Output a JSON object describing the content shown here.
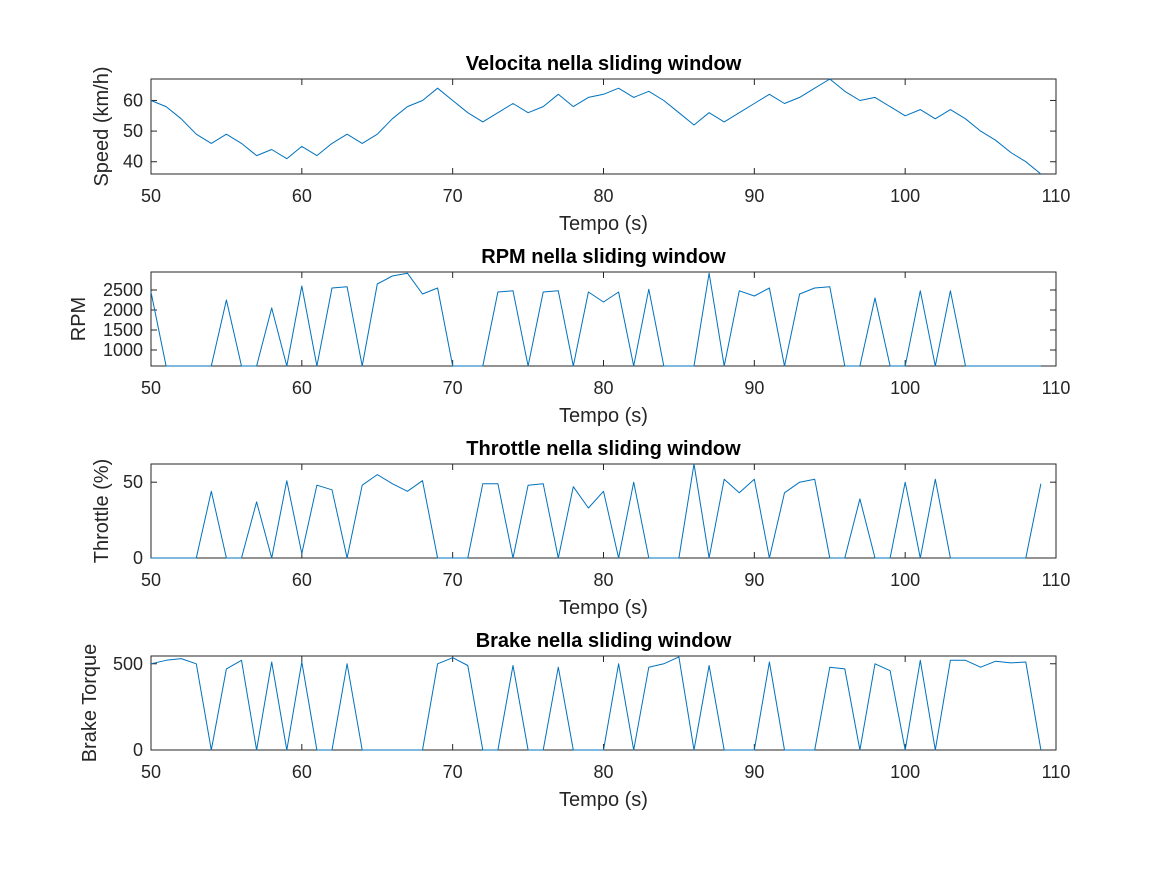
{
  "chart_data": [
    {
      "type": "line",
      "title": "Velocita nella sliding window",
      "xlabel": "Tempo (s)",
      "ylabel": "Speed (km/h)",
      "xlim": [
        50,
        110
      ],
      "ylim": [
        36,
        67
      ],
      "xticks": [
        50,
        60,
        70,
        80,
        90,
        100,
        110
      ],
      "yticks": [
        40,
        50,
        60
      ],
      "grid": false,
      "color": "#0072BD",
      "x": [
        50,
        51,
        52,
        53,
        54,
        55,
        56,
        57,
        58,
        59,
        60,
        61,
        62,
        63,
        64,
        65,
        66,
        67,
        68,
        69,
        70,
        71,
        72,
        73,
        74,
        75,
        76,
        77,
        78,
        79,
        80,
        81,
        82,
        83,
        84,
        85,
        86,
        87,
        88,
        89,
        90,
        91,
        92,
        93,
        94,
        95,
        96,
        97,
        98,
        99,
        100,
        101,
        102,
        103,
        104,
        105,
        106,
        107,
        108,
        109
      ],
      "y": [
        60,
        58,
        54,
        49,
        46,
        49,
        46,
        42,
        44,
        41,
        45,
        42,
        46,
        49,
        46,
        49,
        54,
        58,
        60,
        64,
        60,
        56,
        53,
        56,
        59,
        56,
        58,
        62,
        58,
        61,
        62,
        64,
        61,
        63,
        60,
        56,
        52,
        56,
        53,
        56,
        59,
        62,
        59,
        61,
        64,
        67,
        63,
        60,
        61,
        58,
        55,
        57,
        54,
        57,
        54,
        50,
        47,
        43,
        40,
        36
      ]
    },
    {
      "type": "line",
      "title": "RPM nella sliding window",
      "xlabel": "Tempo (s)",
      "ylabel": "RPM",
      "xlim": [
        50,
        110
      ],
      "ylim": [
        600,
        2950
      ],
      "xticks": [
        50,
        60,
        70,
        80,
        90,
        100,
        110
      ],
      "yticks": [
        1000,
        1500,
        2000,
        2500
      ],
      "grid": false,
      "color": "#0072BD",
      "x": [
        50,
        51,
        52,
        53,
        54,
        55,
        56,
        57,
        58,
        59,
        60,
        61,
        62,
        63,
        64,
        65,
        66,
        67,
        68,
        69,
        70,
        71,
        72,
        73,
        74,
        75,
        76,
        77,
        78,
        79,
        80,
        81,
        82,
        83,
        84,
        85,
        86,
        87,
        88,
        89,
        90,
        91,
        92,
        93,
        94,
        95,
        96,
        97,
        98,
        99,
        100,
        101,
        102,
        103,
        104,
        105,
        106,
        107,
        108,
        109
      ],
      "y": [
        2450,
        600,
        600,
        600,
        600,
        2250,
        600,
        600,
        2050,
        600,
        2600,
        600,
        2550,
        2580,
        600,
        2650,
        2850,
        2920,
        2400,
        2550,
        600,
        600,
        600,
        2450,
        2480,
        600,
        2450,
        2480,
        600,
        2450,
        2200,
        2450,
        600,
        2520,
        600,
        600,
        600,
        2920,
        600,
        2480,
        2350,
        2550,
        600,
        2400,
        2550,
        2580,
        600,
        600,
        2300,
        600,
        600,
        2480,
        600,
        2480,
        600,
        600,
        600,
        600,
        600,
        600
      ]
    },
    {
      "type": "line",
      "title": "Throttle nella sliding window",
      "xlabel": "Tempo (s)",
      "ylabel": "Throttle (%)",
      "xlim": [
        50,
        110
      ],
      "ylim": [
        0,
        62
      ],
      "xticks": [
        50,
        60,
        70,
        80,
        90,
        100,
        110
      ],
      "yticks": [
        0,
        50
      ],
      "grid": false,
      "color": "#0072BD",
      "x": [
        50,
        51,
        52,
        53,
        54,
        55,
        56,
        57,
        58,
        59,
        60,
        61,
        62,
        63,
        64,
        65,
        66,
        67,
        68,
        69,
        70,
        71,
        72,
        73,
        74,
        75,
        76,
        77,
        78,
        79,
        80,
        81,
        82,
        83,
        84,
        85,
        86,
        87,
        88,
        89,
        90,
        91,
        92,
        93,
        94,
        95,
        96,
        97,
        98,
        99,
        100,
        101,
        102,
        103,
        104,
        105,
        106,
        107,
        108,
        109
      ],
      "y": [
        0,
        0,
        0,
        0,
        44,
        0,
        0,
        37,
        0,
        51,
        3,
        48,
        45,
        0,
        48,
        55,
        49,
        44,
        51,
        0,
        0,
        0,
        49,
        49,
        0,
        48,
        49,
        0,
        47,
        33,
        44,
        0,
        50,
        0,
        0,
        0,
        62,
        0,
        52,
        43,
        52,
        0,
        43,
        50,
        52,
        0,
        0,
        39,
        0,
        0,
        50,
        0,
        52,
        0,
        0,
        0,
        0,
        0,
        0,
        49
      ]
    },
    {
      "type": "line",
      "title": "Brake nella sliding window",
      "xlabel": "Tempo (s)",
      "ylabel": "Brake Torque",
      "xlim": [
        50,
        110
      ],
      "ylim": [
        0,
        545
      ],
      "xticks": [
        50,
        60,
        70,
        80,
        90,
        100,
        110
      ],
      "yticks": [
        0,
        500
      ],
      "grid": false,
      "color": "#0072BD",
      "x": [
        50,
        51,
        52,
        53,
        54,
        55,
        56,
        57,
        58,
        59,
        60,
        61,
        62,
        63,
        64,
        65,
        66,
        67,
        68,
        69,
        70,
        71,
        72,
        73,
        74,
        75,
        76,
        77,
        78,
        79,
        80,
        81,
        82,
        83,
        84,
        85,
        86,
        87,
        88,
        89,
        90,
        91,
        92,
        93,
        94,
        95,
        96,
        97,
        98,
        99,
        100,
        101,
        102,
        103,
        104,
        105,
        106,
        107,
        108,
        109
      ],
      "y": [
        500,
        520,
        530,
        500,
        0,
        470,
        520,
        0,
        510,
        0,
        510,
        0,
        0,
        500,
        0,
        0,
        0,
        0,
        0,
        500,
        535,
        490,
        0,
        0,
        490,
        0,
        0,
        480,
        0,
        0,
        0,
        500,
        0,
        480,
        500,
        540,
        0,
        490,
        0,
        0,
        0,
        510,
        0,
        0,
        0,
        480,
        470,
        0,
        500,
        460,
        0,
        520,
        0,
        520,
        520,
        480,
        515,
        505,
        510,
        0
      ]
    }
  ]
}
